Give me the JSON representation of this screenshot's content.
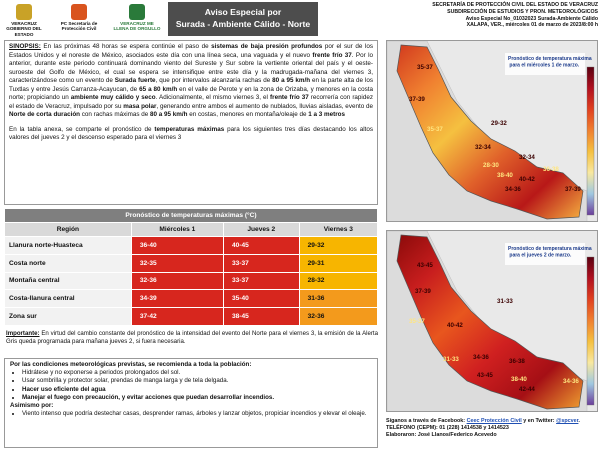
{
  "header": {
    "logos": [
      "VERACRUZ GOBIERNO DEL ESTADO",
      "PC Secretaría de Protección Civil",
      "VERACRUZ ME LLENA DE ORGULLO"
    ],
    "title": [
      "Aviso Especial por",
      "Surada - Ambiente Cálido - Norte"
    ],
    "agency": [
      "SECRETARÍA DE PROTECCIÓN CIVIL DEL ESTADO DE VERACRUZ",
      "SUBDIRECCIÓN DE ESTUDIOS Y PRON. METEOROLÓGICOS",
      "Aviso Especial No_01032023 Surada-Ambiente Cálido",
      "XALAPA, VER., miércoles 01 de marzo de 2023/8:00 h"
    ]
  },
  "synopsis": {
    "label": "SINOPSIS:",
    "paragraphs": [
      [
        " En las próximas 48 horas se espera continúe el paso de ",
        "sistemas de baja presión profundos",
        " por el sur de los Estados Unidos y el noreste de México, asociados este día con una línea seca, una vaguada y el nuevo ",
        "frente frío 37",
        ". Por lo anterior, durante este periodo continuará dominando viento del Sureste y Sur sobre la vertiente oriental del país y el oeste-suroeste del Golfo de México, el cual se espera se intensifique entre este día y la madrugada-mañana del viernes 3, caracterizándose como un evento de ",
        "Surada fuerte",
        ", que por intervalos alcanzaría rachas de ",
        "80 a 95 km/h",
        " en la parte alta de los Tuxtlas y entre Jesús Carranza-Acayucan, de ",
        "65 a 80 km/h",
        " en el valle de Perote y en la zona de Orizaba, y menores en la costa norte; propiciando un ",
        "ambiente muy cálido y seco",
        ". Adicionalmente, el mismo viernes 3, el ",
        "frente frío 37",
        " recorrería con rapidez el estado de Veracruz, impulsado por su ",
        "masa polar",
        ", generando entre ambos el aumento de nublados, lluvias aisladas, evento de ",
        "Norte de corta duración",
        " con rachas máximas de ",
        "80 a 95 km/h",
        " en costas, menores en montaña/oleaje de ",
        "1 a 3 metros"
      ],
      [
        "En la tabla anexa, se comparte el pronóstico de ",
        "temperaturas máximas",
        " para los siguientes tres días destacando los altos valores del jueves 2 y el descenso esperado para el viernes 3"
      ]
    ]
  },
  "table": {
    "title": "Pronóstico de temperaturas máximas (°C)",
    "columns": [
      "Región",
      "Miércoles 1",
      "Jueves 2",
      "Viernes 3"
    ],
    "rows": [
      [
        "Llanura norte-Huasteca",
        "36-40",
        "40-45",
        "29-32"
      ],
      [
        "Costa norte",
        "32-35",
        "33-37",
        "29-31"
      ],
      [
        "Montaña central",
        "32-36",
        "33-37",
        "28-32"
      ],
      [
        "Costa-llanura central",
        "34-39",
        "35-40",
        "31-36"
      ],
      [
        "Zona sur",
        "37-42",
        "38-45",
        "32-36"
      ]
    ]
  },
  "important": {
    "label": "Importante:",
    "text": " En virtud del cambio constante del pronóstico de la intensidad del evento del Norte para el viernes 3, la emisión de la Alerta Gris queda programada para mañana jueves 2, si fuera necesaria."
  },
  "recommendations": {
    "intro": "Por las condiciones meteorológicas previstas, se recomienda a toda la población:",
    "items": [
      "Hidrátese y no exponerse a periodos prolongados del sol.",
      "Usar sombrilla y protector solar, prendas de manga larga y de tela delgada.",
      "Hacer uso eficiente del agua",
      "Manejar el fuego con precaución, y evitar acciones que puedan desarrollar incendios."
    ],
    "also": "Asimismo por:",
    "also_items": [
      "Viento intenso que podría destechar casas, desprender ramas, árboles y lanzar objetos, propiciar incendios y elevar el oleaje."
    ]
  },
  "maps": [
    {
      "caption": "Pronóstico de temperatura máxima para el miércoles 1 de marzo.",
      "labels": [
        "35-37",
        "37-39",
        "35-37",
        "29-32",
        "32-34",
        "28-30",
        "32-34",
        "34-36",
        "38-40",
        "40-42",
        "37-39",
        "36-38"
      ]
    },
    {
      "caption": "Pronóstico de temperatura máxima para el jueves 2 de marzo.",
      "labels": [
        "43-45",
        "37-39",
        "35-37",
        "31-33",
        "40-42",
        "31-33",
        "34-36",
        "36-38",
        "38-40",
        "43-45",
        "42-44",
        "34-36"
      ]
    }
  ],
  "footer": {
    "follow": [
      "Síganos a través de Facebook: ",
      "Ceec Protección Civil",
      " y en Twitter: ",
      "@spcver",
      ". TELÉFONO (CEPM): 01 (228) 1414538 y 1414523"
    ],
    "credits": "Elaboraron: José Llanos/Federico Acevedo"
  }
}
